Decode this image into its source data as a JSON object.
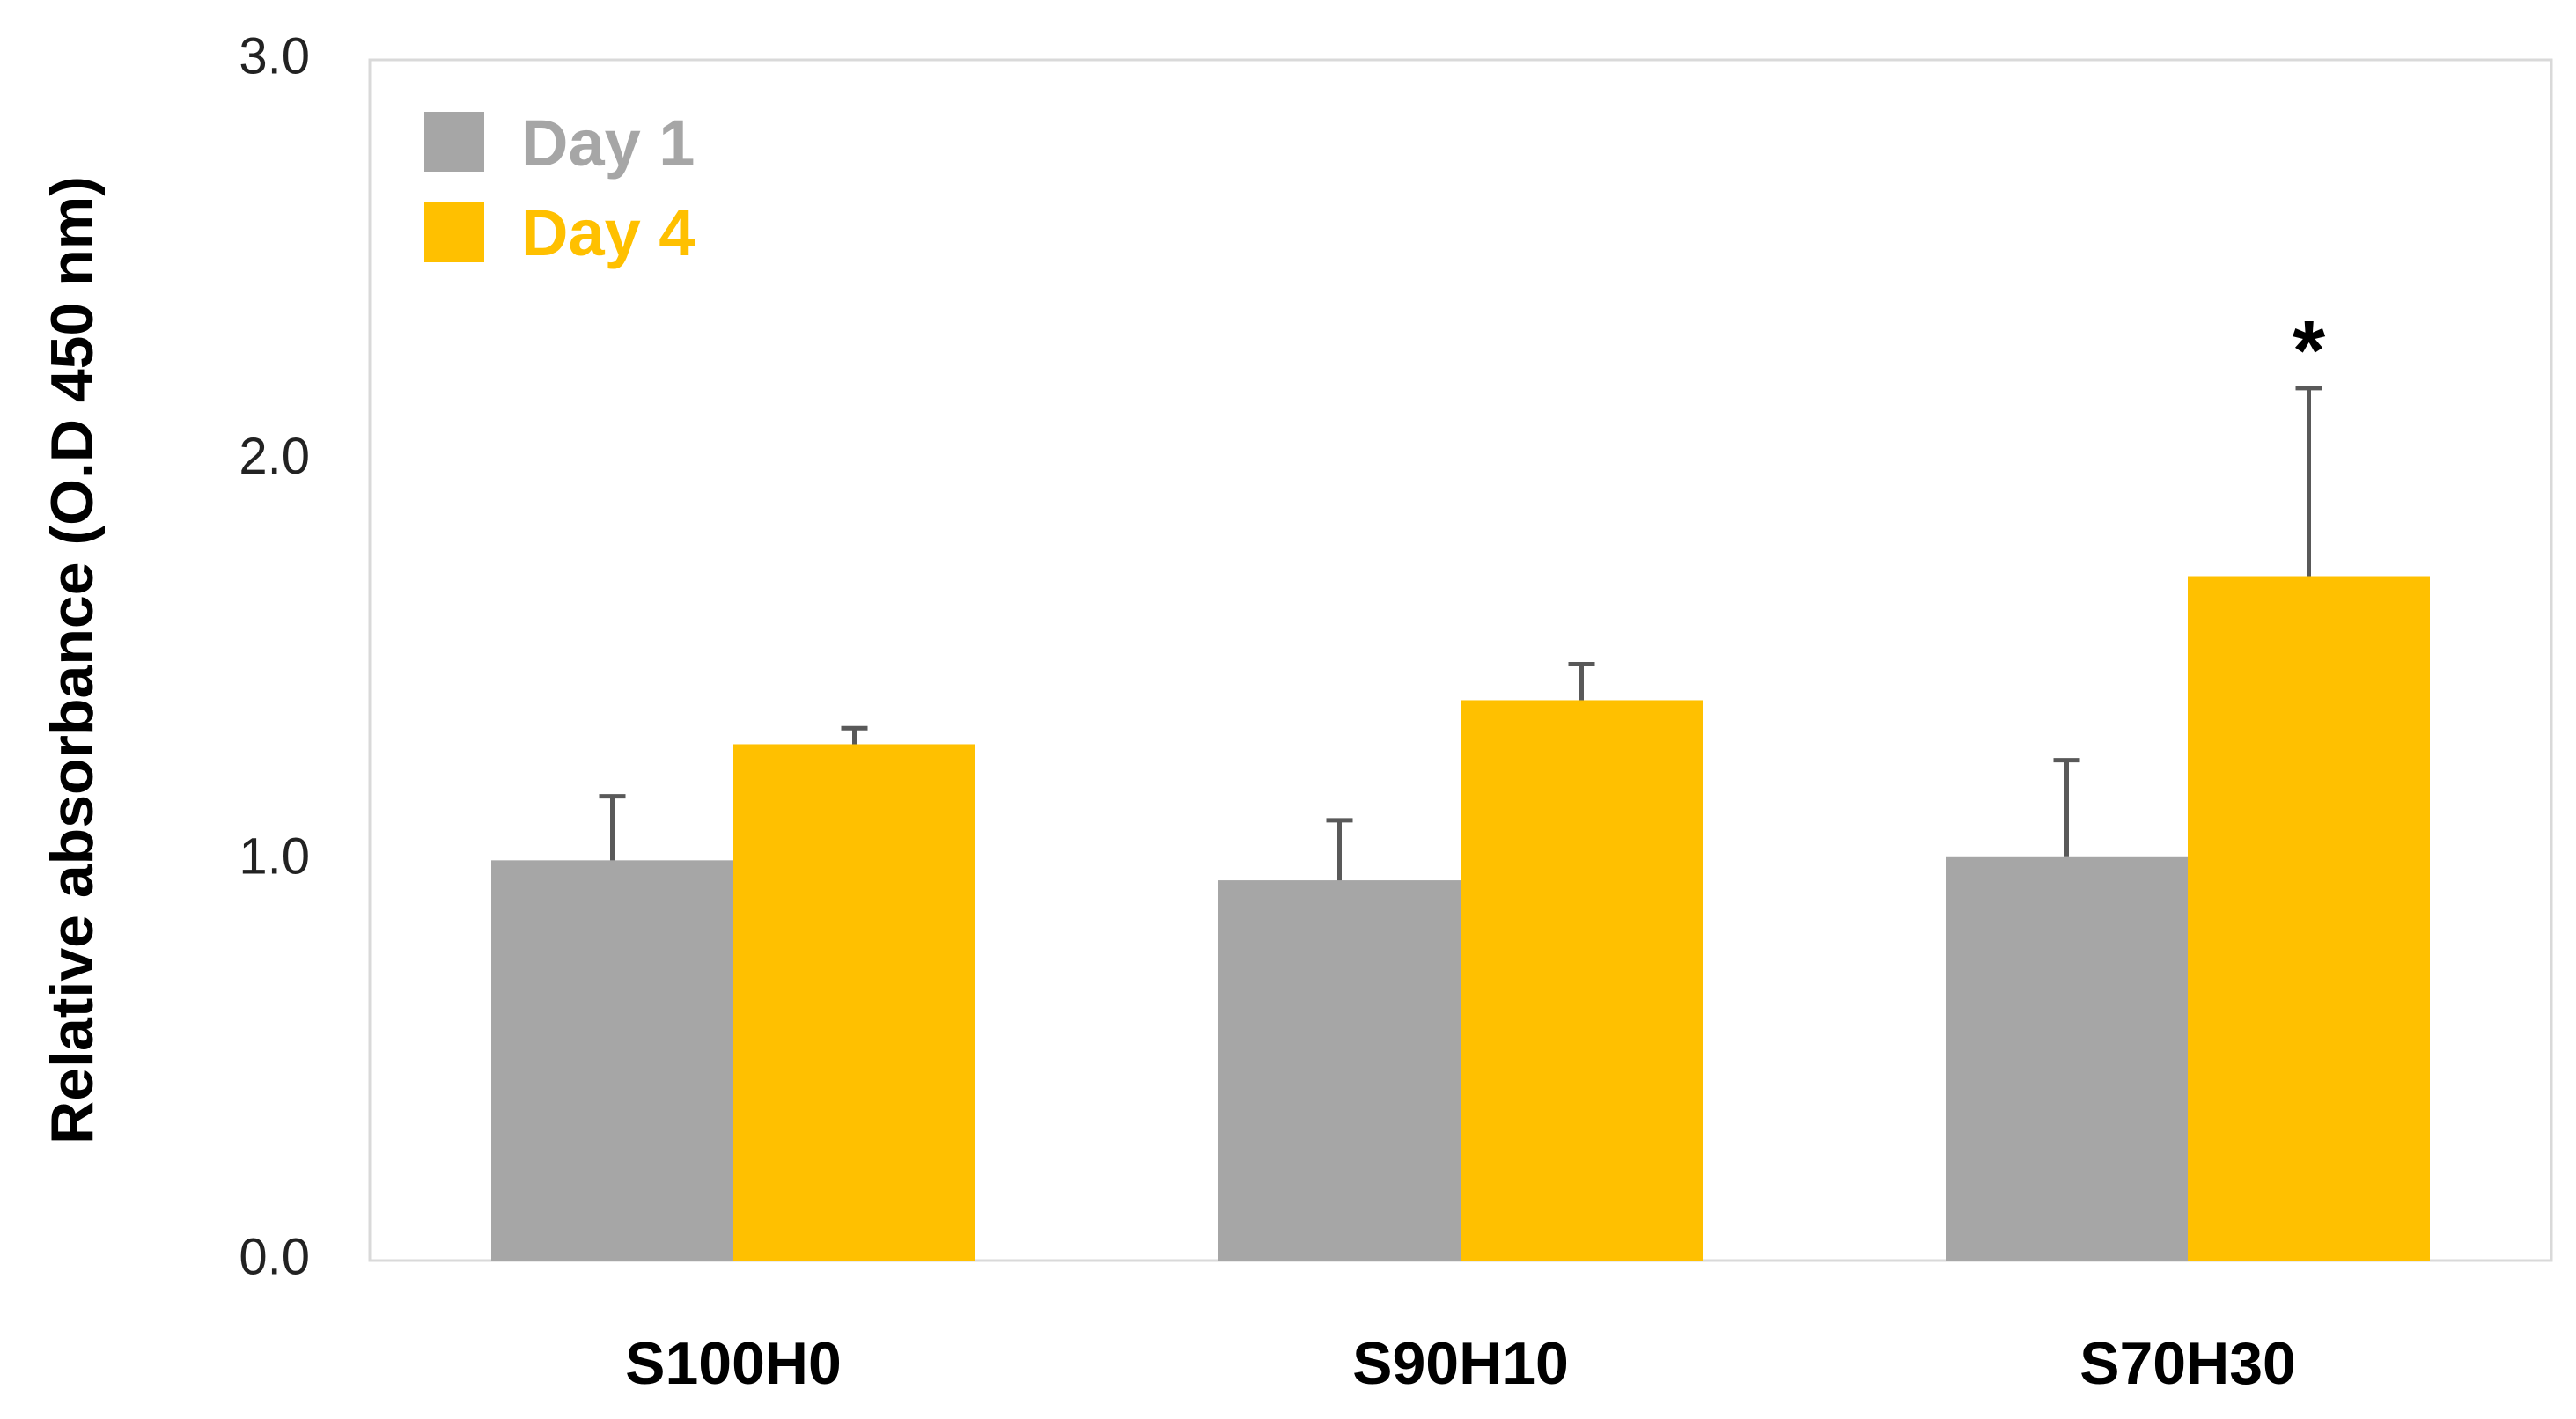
{
  "chart_data": {
    "type": "bar",
    "categories": [
      "S100H0",
      "S90H10",
      "S70H30"
    ],
    "series": [
      {
        "name": "Day 1",
        "color": "#a6a6a6",
        "values": [
          1.0,
          0.95,
          1.01
        ],
        "error": [
          0.16,
          0.15,
          0.24
        ]
      },
      {
        "name": "Day 4",
        "color": "#ffc000",
        "values": [
          1.29,
          1.4,
          1.71
        ],
        "error": [
          0.04,
          0.09,
          0.47
        ]
      }
    ],
    "ylabel": "Relative absorbance  (O.D 450 nm)",
    "xlabel": "",
    "ylim": [
      0,
      3
    ],
    "yticks": [
      "0.0",
      "1.0",
      "2.0",
      "3.0"
    ],
    "grid": false,
    "legend_position": "top-left",
    "annotations": [
      {
        "category": "S70H30",
        "series": "Day 4",
        "text": "*"
      }
    ]
  }
}
